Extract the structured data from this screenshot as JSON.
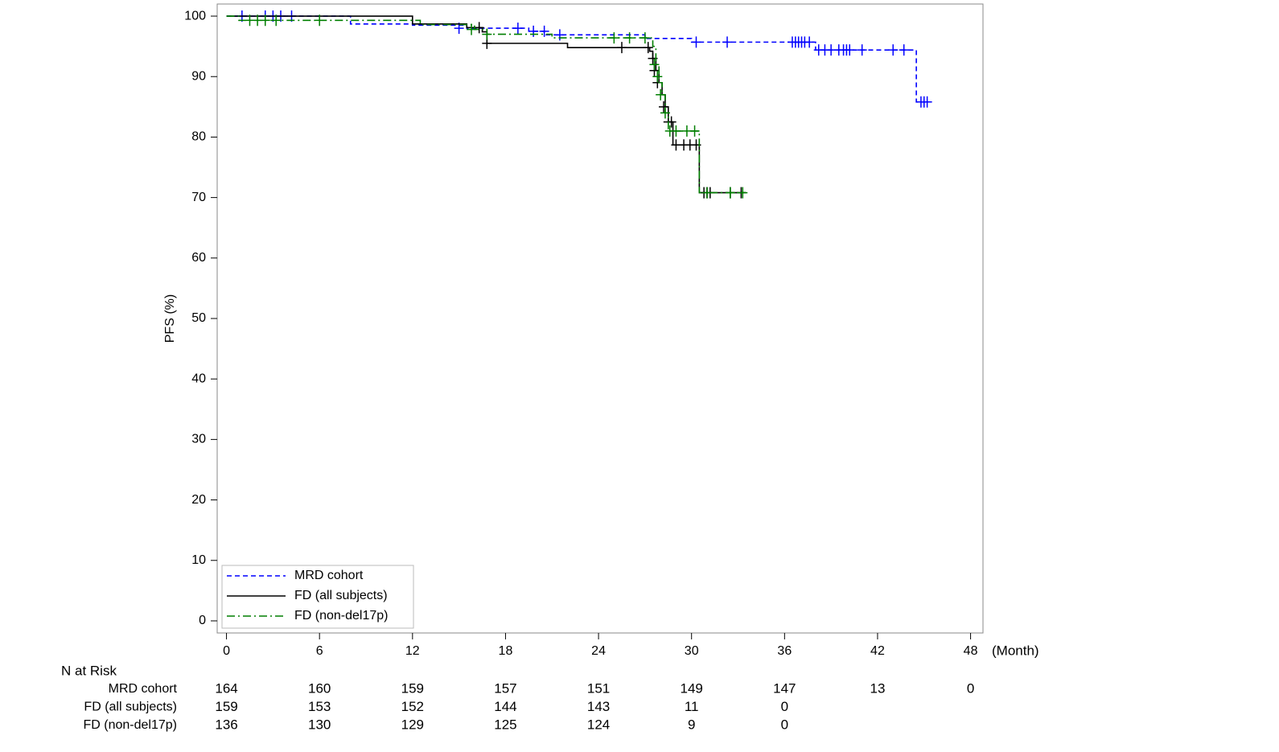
{
  "chart_data": {
    "type": "km",
    "y_label": "PFS (%)",
    "x_unit_label": "(Month)",
    "xlim": [
      -0.6,
      48.8
    ],
    "ylim": [
      -2,
      102
    ],
    "xticks": [
      0,
      6,
      12,
      18,
      24,
      30,
      36,
      42,
      48
    ],
    "yticks": [
      0,
      10,
      20,
      30,
      40,
      50,
      60,
      70,
      80,
      90,
      100
    ],
    "series": [
      {
        "name": "MRD cohort",
        "color": "#0000ff",
        "dash": "6 4",
        "x": [
          0,
          8,
          12,
          15.5,
          19.5,
          20.5,
          27,
          30,
          38,
          44.5,
          45.2
        ],
        "values": [
          100,
          98.7,
          98.5,
          98.0,
          97.5,
          96.9,
          96.3,
          95.7,
          94.4,
          85.8,
          85.8
        ],
        "censor_x": [
          1,
          2.5,
          3,
          3.5,
          4.2,
          15,
          18.8,
          19.8,
          20.5,
          21.5,
          30.3,
          32.3,
          36.5,
          36.7,
          36.9,
          37.1,
          37.3,
          37.6,
          38.2,
          38.6,
          39,
          39.5,
          39.8,
          40,
          40.2,
          41,
          43,
          43.7,
          44.8,
          45,
          45.2
        ],
        "censor_values": [
          100,
          100,
          100,
          100,
          100,
          98.0,
          98.0,
          97.5,
          97.5,
          96.9,
          95.7,
          95.7,
          95.7,
          95.7,
          95.7,
          95.7,
          95.7,
          95.7,
          94.4,
          94.4,
          94.4,
          94.4,
          94.4,
          94.4,
          94.4,
          94.4,
          94.4,
          94.4,
          85.8,
          85.8,
          85.8
        ]
      },
      {
        "name": "FD (all subjects)",
        "color": "#000000",
        "dash": "",
        "x": [
          0,
          12,
          15.5,
          16.5,
          16.8,
          22,
          27.3,
          27.5,
          27.7,
          27.9,
          28.1,
          28.3,
          28.5,
          28.8,
          30.5,
          33.5
        ],
        "values": [
          100,
          98.7,
          98.1,
          97.4,
          95.5,
          94.8,
          94.2,
          93,
          91,
          89,
          87,
          85,
          82.5,
          78.7,
          70.8,
          70.8
        ],
        "censor_x": [
          16.3,
          16.8,
          25.5,
          27.2,
          27.5,
          27.6,
          27.8,
          28.2,
          28.5,
          28.7,
          29,
          29.5,
          29.9,
          30.3,
          30.8,
          31,
          31.2,
          32.5,
          33.2
        ],
        "censor_values": [
          98.1,
          95.5,
          94.8,
          94.8,
          93,
          91,
          89,
          85,
          82.5,
          82.5,
          78.7,
          78.7,
          78.7,
          78.7,
          70.8,
          70.8,
          70.8,
          70.8,
          70.8
        ]
      },
      {
        "name": "FD (non-del17p)",
        "color": "#007f00",
        "dash": "10 4 2 4",
        "x": [
          0,
          0.8,
          12.5,
          16,
          16.8,
          21,
          27.5,
          27.7,
          27.9,
          28.1,
          28.3,
          28.5,
          30.5,
          33.5
        ],
        "values": [
          100,
          99.3,
          98.6,
          97.8,
          97.0,
          96.4,
          95,
          92,
          89,
          87,
          84,
          81,
          70.8,
          70.8
        ],
        "censor_x": [
          1.5,
          2,
          2.5,
          3.2,
          6,
          15.8,
          16.8,
          25,
          26,
          27,
          27.6,
          27.8,
          28,
          28.3,
          28.6,
          29,
          29.7,
          30.2,
          31,
          32.5,
          33.3
        ],
        "censor_values": [
          99.3,
          99.3,
          99.3,
          99.3,
          99.3,
          97.8,
          97.0,
          96.4,
          96.4,
          96.4,
          92,
          90,
          87,
          84,
          81,
          81,
          81,
          81,
          70.8,
          70.8,
          70.8
        ]
      }
    ],
    "legend": "lower left",
    "risk_table": {
      "title": "N at Risk",
      "rows": [
        {
          "label": "MRD cohort",
          "counts": [
            164,
            160,
            159,
            157,
            151,
            149,
            147,
            13,
            0
          ]
        },
        {
          "label": "FD (all subjects)",
          "counts": [
            159,
            153,
            152,
            144,
            143,
            11,
            0
          ]
        },
        {
          "label": "FD (non-del17p)",
          "counts": [
            136,
            130,
            129,
            125,
            124,
            9,
            0
          ]
        }
      ]
    }
  }
}
